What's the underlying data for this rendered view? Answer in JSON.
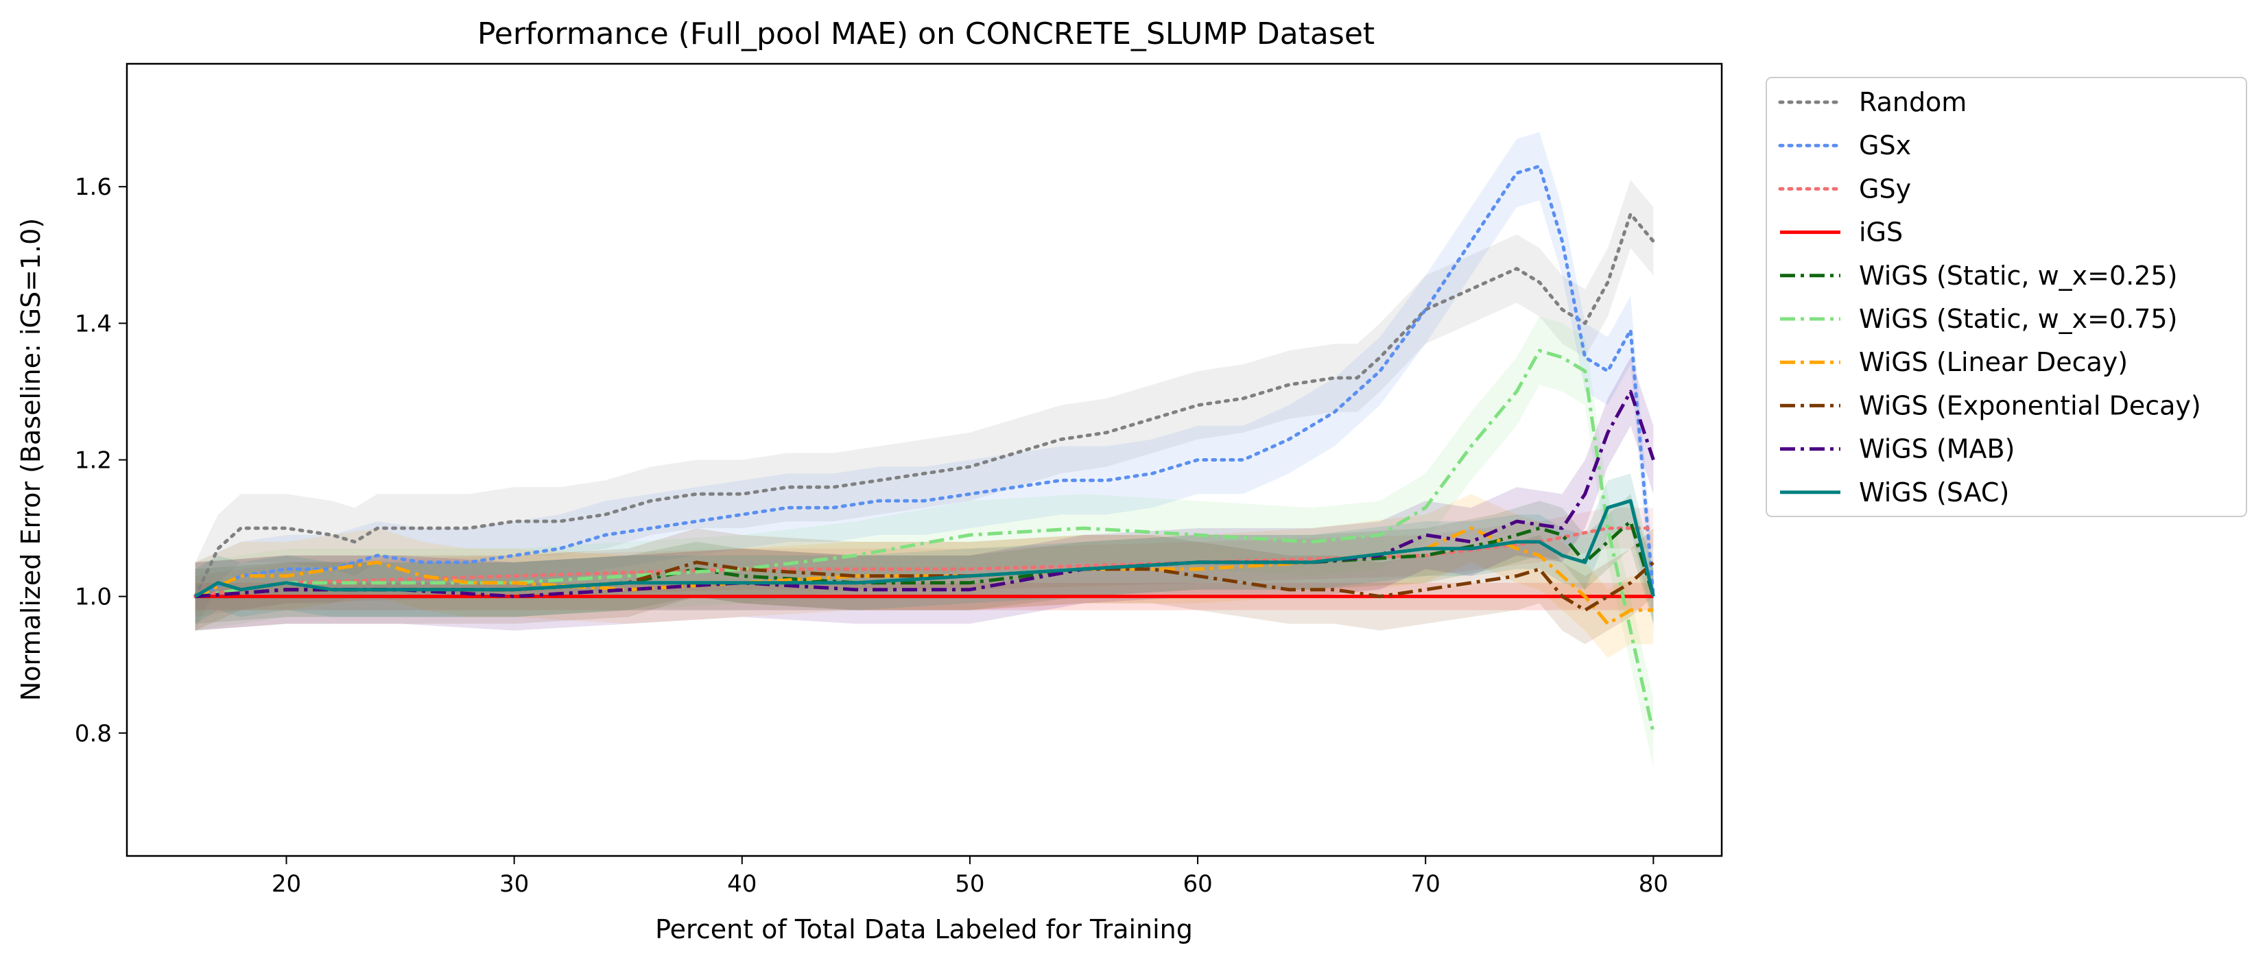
{
  "chart_data": {
    "type": "line",
    "title": "Performance (Full_pool MAE) on CONCRETE_SLUMP Dataset",
    "xlabel": "Percent of Total Data Labeled for Training",
    "ylabel": "Normalized Error (Baseline: iGS=1.0)",
    "xlim": [
      13,
      83
    ],
    "ylim": [
      0.62,
      1.78
    ],
    "xticks": [
      20,
      30,
      40,
      50,
      60,
      70,
      80
    ],
    "yticks": [
      0.8,
      1.0,
      1.2,
      1.4,
      1.6
    ],
    "grid": false,
    "legend_position": "outside-right",
    "series": [
      {
        "name": "Random",
        "color": "#808080",
        "dash": "dotted",
        "x": [
          16,
          17,
          18,
          20,
          22,
          23,
          24,
          26,
          28,
          30,
          32,
          34,
          36,
          38,
          40,
          42,
          44,
          46,
          48,
          50,
          52,
          54,
          56,
          58,
          60,
          62,
          64,
          66,
          67,
          68,
          70,
          72,
          74,
          75,
          76,
          77,
          78,
          79,
          80
        ],
        "y": [
          1.0,
          1.07,
          1.1,
          1.1,
          1.09,
          1.08,
          1.1,
          1.1,
          1.1,
          1.11,
          1.11,
          1.12,
          1.14,
          1.15,
          1.15,
          1.16,
          1.16,
          1.17,
          1.18,
          1.19,
          1.21,
          1.23,
          1.24,
          1.26,
          1.28,
          1.29,
          1.31,
          1.32,
          1.32,
          1.35,
          1.42,
          1.45,
          1.48,
          1.46,
          1.42,
          1.4,
          1.46,
          1.56,
          1.52
        ],
        "band": 0.05
      },
      {
        "name": "GSx",
        "color": "#5b8ff0",
        "dash": "dotted",
        "x": [
          16,
          18,
          20,
          22,
          24,
          26,
          28,
          30,
          32,
          34,
          36,
          38,
          40,
          42,
          44,
          46,
          48,
          50,
          52,
          54,
          56,
          58,
          60,
          62,
          64,
          66,
          68,
          70,
          72,
          74,
          75,
          76,
          77,
          78,
          79,
          80
        ],
        "y": [
          1.0,
          1.03,
          1.04,
          1.04,
          1.06,
          1.05,
          1.05,
          1.06,
          1.07,
          1.09,
          1.1,
          1.11,
          1.12,
          1.13,
          1.13,
          1.14,
          1.14,
          1.15,
          1.16,
          1.17,
          1.17,
          1.18,
          1.2,
          1.2,
          1.23,
          1.27,
          1.33,
          1.42,
          1.52,
          1.62,
          1.63,
          1.52,
          1.35,
          1.33,
          1.39,
          1.0
        ],
        "band": 0.05
      },
      {
        "name": "GSy",
        "color": "#f07070",
        "dash": "dotted",
        "x": [
          16,
          20,
          30,
          40,
          50,
          60,
          70,
          75,
          78,
          80
        ],
        "y": [
          1.0,
          1.02,
          1.03,
          1.04,
          1.04,
          1.05,
          1.06,
          1.08,
          1.1,
          1.1
        ],
        "band": 0.03
      },
      {
        "name": "iGS",
        "color": "#ff0000",
        "dash": "solid",
        "x": [
          16,
          80
        ],
        "y": [
          1.0,
          1.0
        ],
        "band": 0.02
      },
      {
        "name": "WiGS (Static, w_x=0.25)",
        "color": "#116611",
        "dash": "dashdot",
        "x": [
          16,
          20,
          25,
          30,
          35,
          38,
          40,
          45,
          50,
          55,
          60,
          65,
          70,
          73,
          75,
          76,
          77,
          78,
          79,
          80
        ],
        "y": [
          1.0,
          1.01,
          1.01,
          1.01,
          1.02,
          1.04,
          1.03,
          1.02,
          1.02,
          1.04,
          1.05,
          1.05,
          1.06,
          1.08,
          1.1,
          1.09,
          1.05,
          1.08,
          1.11,
          1.0
        ],
        "band": 0.04
      },
      {
        "name": "WiGS (Static, w_x=0.75)",
        "color": "#80e080",
        "dash": "dashdot",
        "x": [
          16,
          20,
          25,
          30,
          35,
          40,
          45,
          50,
          55,
          60,
          65,
          68,
          70,
          72,
          74,
          75,
          76,
          77,
          78,
          79,
          80
        ],
        "y": [
          1.0,
          1.02,
          1.02,
          1.02,
          1.03,
          1.04,
          1.06,
          1.09,
          1.1,
          1.09,
          1.08,
          1.09,
          1.13,
          1.22,
          1.3,
          1.36,
          1.35,
          1.33,
          1.1,
          0.95,
          0.8
        ],
        "band": 0.05
      },
      {
        "name": "WiGS (Linear Decay)",
        "color": "#ffa500",
        "dash": "dashdot",
        "x": [
          16,
          18,
          20,
          22,
          24,
          26,
          28,
          30,
          35,
          40,
          45,
          50,
          55,
          60,
          65,
          70,
          72,
          74,
          75,
          76,
          77,
          78,
          79,
          80
        ],
        "y": [
          1.0,
          1.03,
          1.03,
          1.04,
          1.05,
          1.03,
          1.02,
          1.02,
          1.01,
          1.02,
          1.03,
          1.03,
          1.04,
          1.04,
          1.05,
          1.07,
          1.1,
          1.07,
          1.06,
          1.03,
          1.0,
          0.96,
          0.98,
          0.98
        ],
        "band": 0.05
      },
      {
        "name": "WiGS (Exponential Decay)",
        "color": "#7b3a00",
        "dash": "dashdot",
        "x": [
          16,
          20,
          25,
          30,
          35,
          38,
          40,
          45,
          50,
          55,
          58,
          60,
          62,
          64,
          66,
          68,
          70,
          72,
          74,
          75,
          76,
          77,
          78,
          79,
          80
        ],
        "y": [
          1.0,
          1.01,
          1.01,
          1.01,
          1.02,
          1.05,
          1.04,
          1.03,
          1.03,
          1.04,
          1.04,
          1.03,
          1.02,
          1.01,
          1.01,
          1.0,
          1.01,
          1.02,
          1.03,
          1.04,
          1.0,
          0.98,
          1.0,
          1.02,
          1.05
        ],
        "band": 0.05
      },
      {
        "name": "WiGS (MAB)",
        "color": "#4b0082",
        "dash": "dashdot",
        "x": [
          16,
          20,
          25,
          30,
          35,
          40,
          45,
          50,
          55,
          60,
          65,
          68,
          70,
          72,
          74,
          76,
          77,
          78,
          79,
          80
        ],
        "y": [
          1.0,
          1.01,
          1.01,
          1.0,
          1.01,
          1.02,
          1.01,
          1.01,
          1.04,
          1.05,
          1.05,
          1.06,
          1.09,
          1.08,
          1.11,
          1.1,
          1.15,
          1.24,
          1.3,
          1.2
        ],
        "band": 0.05
      },
      {
        "name": "WiGS (SAC)",
        "color": "#008080",
        "dash": "solid",
        "x": [
          16,
          17,
          18,
          20,
          22,
          24,
          26,
          28,
          30,
          35,
          40,
          45,
          50,
          55,
          60,
          65,
          70,
          72,
          74,
          75,
          76,
          77,
          78,
          79,
          80
        ],
        "y": [
          1.0,
          1.02,
          1.01,
          1.02,
          1.01,
          1.01,
          1.01,
          1.01,
          1.01,
          1.02,
          1.02,
          1.02,
          1.03,
          1.04,
          1.05,
          1.05,
          1.07,
          1.07,
          1.08,
          1.08,
          1.06,
          1.05,
          1.13,
          1.14,
          1.0
        ],
        "band": 0.04
      }
    ]
  }
}
